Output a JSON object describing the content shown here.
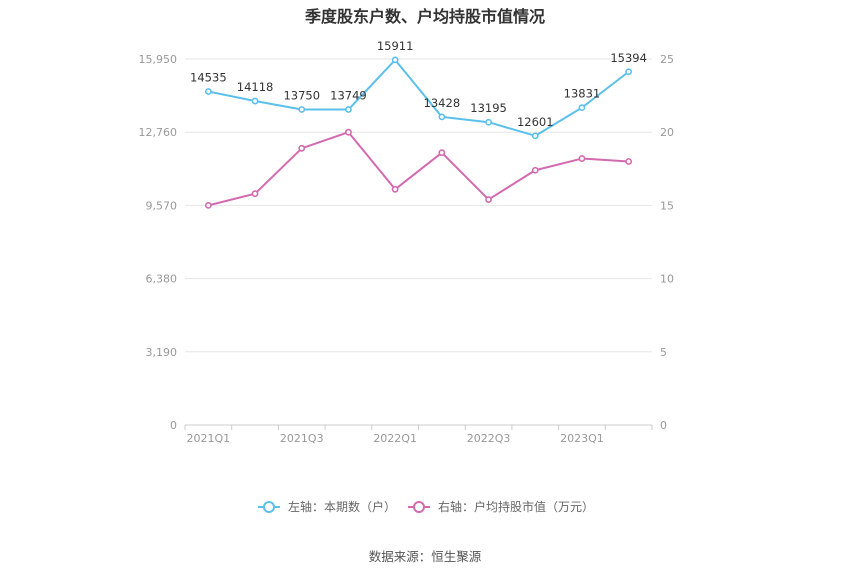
{
  "title": "季度股东户数、户均持股市值情况",
  "source": "数据来源：恒生聚源",
  "chart_data": {
    "type": "line",
    "title": "季度股东户数、户均持股市值情况",
    "x": [
      "2021Q1",
      "2021Q2",
      "2021Q3",
      "2021Q4",
      "2022Q1",
      "2022Q2",
      "2022Q3",
      "2022Q4",
      "2023Q1",
      "2023Q2"
    ],
    "x_tick_labels": [
      "2021Q1",
      "",
      "2021Q3",
      "",
      "2022Q1",
      "",
      "2022Q3",
      "",
      "2023Q1",
      ""
    ],
    "left_axis": {
      "ticks": [
        "0",
        "3,190",
        "6,380",
        "9,570",
        "12,760",
        "15,950"
      ],
      "range": [
        0,
        15950
      ]
    },
    "right_axis": {
      "ticks": [
        "0",
        "5",
        "10",
        "15",
        "20",
        "25"
      ],
      "range": [
        0,
        25
      ]
    },
    "grid": true,
    "legend_position": "bottom",
    "series": [
      {
        "name": "左轴：本期数（户）",
        "axis": "left",
        "color": "#5bc0eb",
        "values": [
          14535,
          14118,
          13750,
          13749,
          15911,
          13428,
          13195,
          12601,
          13831,
          15394
        ],
        "data_labels": [
          "14535",
          "14118",
          "13750",
          "13749",
          "15911",
          "13428",
          "13195",
          "12601",
          "13831",
          "15394"
        ]
      },
      {
        "name": "右轴：户均持股市值（万元）",
        "axis": "right",
        "color": "#d36aaf",
        "values": [
          15.0,
          15.8,
          18.9,
          20.0,
          16.1,
          18.6,
          15.4,
          17.4,
          18.2,
          18.0
        ]
      }
    ]
  }
}
